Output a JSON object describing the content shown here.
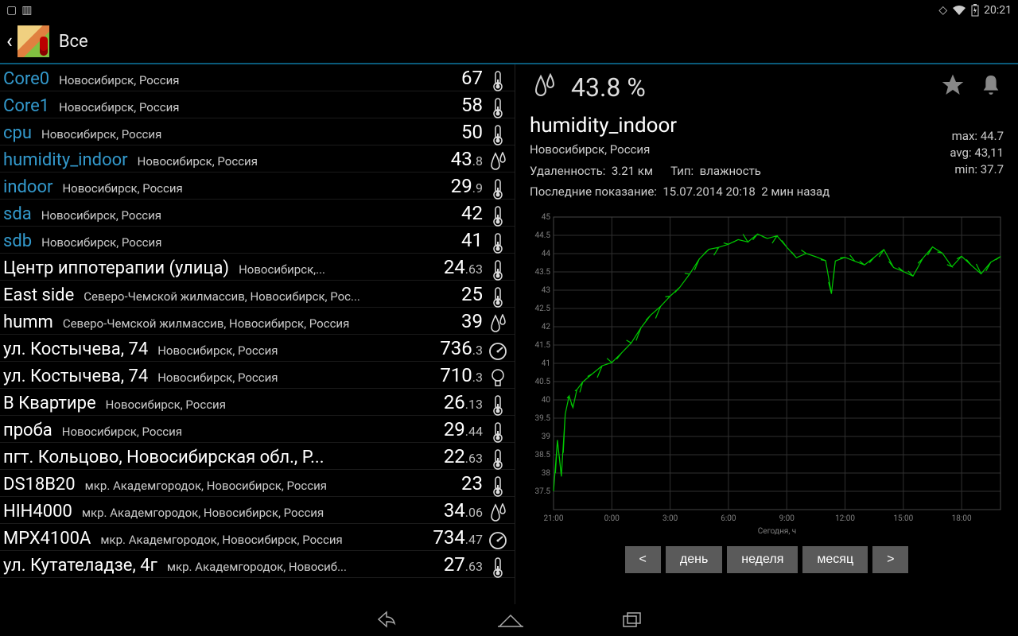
{
  "status": {
    "time": "20:21"
  },
  "header": {
    "title": "Все"
  },
  "sensors": [
    {
      "name": "Core0",
      "loc": "Новосибирск, Россия",
      "val": "67",
      "frac": "",
      "icon": "therm",
      "nameColor": "blue"
    },
    {
      "name": "Core1",
      "loc": "Новосибирск, Россия",
      "val": "58",
      "frac": "",
      "icon": "therm",
      "nameColor": "blue"
    },
    {
      "name": "cpu",
      "loc": "Новосибирск, Россия",
      "val": "50",
      "frac": "",
      "icon": "therm",
      "nameColor": "blue"
    },
    {
      "name": "humidity_indoor",
      "loc": "Новосибирск, Россия",
      "val": "43",
      "frac": ".8",
      "icon": "drop",
      "nameColor": "blue"
    },
    {
      "name": "indoor",
      "loc": "Новосибирск, Россия",
      "val": "29",
      "frac": ".9",
      "icon": "therm",
      "nameColor": "blue"
    },
    {
      "name": "sda",
      "loc": "Новосибирск, Россия",
      "val": "42",
      "frac": "",
      "icon": "therm",
      "nameColor": "blue"
    },
    {
      "name": "sdb",
      "loc": "Новосибирск, Россия",
      "val": "41",
      "frac": "",
      "icon": "therm",
      "nameColor": "blue"
    },
    {
      "name": "Центр иппотерапии (улица)",
      "loc": "Новосибирск,...",
      "val": "24",
      "frac": ".63",
      "icon": "therm",
      "nameColor": "white"
    },
    {
      "name": "East side",
      "loc": "Северо-Чемской жилмассив, Новосибирск, Рос...",
      "val": "25",
      "frac": "",
      "icon": "therm",
      "nameColor": "white"
    },
    {
      "name": "humm",
      "loc": "Северо-Чемской жилмассив, Новосибирск, Россия",
      "val": "39",
      "frac": "",
      "icon": "drop",
      "nameColor": "white"
    },
    {
      "name": "ул. Костычева, 74",
      "loc": "Новосибирск, Россия",
      "val": "736",
      "frac": ".3",
      "icon": "gauge",
      "nameColor": "white"
    },
    {
      "name": "ул. Костычева, 74",
      "loc": "Новосибирск, Россия",
      "val": "710",
      "frac": ".3",
      "icon": "bulb",
      "nameColor": "white"
    },
    {
      "name": "В Квартире",
      "loc": "Новосибирск, Россия",
      "val": "26",
      "frac": ".13",
      "icon": "therm",
      "nameColor": "white"
    },
    {
      "name": "проба",
      "loc": "Новосибирск, Россия",
      "val": "29",
      "frac": ".44",
      "icon": "therm",
      "nameColor": "white"
    },
    {
      "name": "пгт. Кольцово, Новосибирская обл., Р...",
      "loc": "",
      "val": "22",
      "frac": ".63",
      "icon": "therm",
      "nameColor": "white"
    },
    {
      "name": "DS18B20",
      "loc": "мкр. Академгородок, Новосибирск, Россия",
      "val": "23",
      "frac": "",
      "icon": "therm",
      "nameColor": "white"
    },
    {
      "name": "HIH4000",
      "loc": "мкр. Академгородок, Новосибирск, Россия",
      "val": "34",
      "frac": ".06",
      "icon": "drop",
      "nameColor": "white"
    },
    {
      "name": "MPX4100A",
      "loc": "мкр. Академгородок, Новосибирск, Россия",
      "val": "734",
      "frac": ".47",
      "icon": "gauge",
      "nameColor": "white"
    },
    {
      "name": "ул. Кутателадзе, 4г",
      "loc": "мкр. Академгородок, Новосиб...",
      "val": "27",
      "frac": ".63",
      "icon": "therm",
      "nameColor": "white"
    }
  ],
  "detail": {
    "value": "43.8 %",
    "name": "humidity_indoor",
    "location": "Новосибирск, Россия",
    "distance_label": "Удаленность:",
    "distance": "3.21 км",
    "type_label": "Тип:",
    "type": "влажность",
    "last_label": "Последние показание:",
    "last_time": "15.07.2014 20:18",
    "last_ago": "2 мин назад",
    "stats": {
      "max": "max: 44.7",
      "avg": "avg: 43,11",
      "min": "min: 37.7"
    }
  },
  "chart": {
    "type": "line",
    "ylim": [
      37,
      45
    ],
    "yticks": [
      37.5,
      38,
      38.5,
      39,
      39.5,
      40,
      40.5,
      41,
      41.5,
      42,
      42.5,
      43,
      43.5,
      44,
      44.5,
      45
    ],
    "xticks": [
      "21:00",
      "0:00",
      "3:00",
      "6:00",
      "9:00",
      "12:00",
      "15:00",
      "18:00"
    ],
    "xlabel": "Сегодня, ч",
    "line_color": "#00c800",
    "grid_color": "#303030",
    "background_color": "#000000",
    "axis_label_color": "#808080",
    "axis_label_fontsize": 10,
    "series": [
      {
        "t": 0,
        "v": 37.5
      },
      {
        "t": 0.2,
        "v": 38.8
      },
      {
        "t": 0.4,
        "v": 37.8
      },
      {
        "t": 0.6,
        "v": 39.6
      },
      {
        "t": 0.8,
        "v": 40.2
      },
      {
        "t": 1.0,
        "v": 39.9
      },
      {
        "t": 1.2,
        "v": 40.3
      },
      {
        "t": 1.5,
        "v": 40.4
      },
      {
        "t": 2.0,
        "v": 40.6
      },
      {
        "t": 2.5,
        "v": 40.9
      },
      {
        "t": 3.0,
        "v": 41.1
      },
      {
        "t": 3.5,
        "v": 41.4
      },
      {
        "t": 4.0,
        "v": 41.6
      },
      {
        "t": 4.5,
        "v": 41.9
      },
      {
        "t": 5.0,
        "v": 42.2
      },
      {
        "t": 5.5,
        "v": 42.5
      },
      {
        "t": 6.0,
        "v": 42.9
      },
      {
        "t": 6.5,
        "v": 43.2
      },
      {
        "t": 7.0,
        "v": 43.5
      },
      {
        "t": 7.5,
        "v": 43.8
      },
      {
        "t": 8.0,
        "v": 44.0
      },
      {
        "t": 8.5,
        "v": 44.1
      },
      {
        "t": 9.0,
        "v": 44.3
      },
      {
        "t": 9.5,
        "v": 44.5
      },
      {
        "t": 10.0,
        "v": 44.4
      },
      {
        "t": 10.5,
        "v": 44.5
      },
      {
        "t": 11.0,
        "v": 44.3
      },
      {
        "t": 11.5,
        "v": 44.4
      },
      {
        "t": 12.0,
        "v": 44.2
      },
      {
        "t": 12.5,
        "v": 44.0
      },
      {
        "t": 13.0,
        "v": 44.1
      },
      {
        "t": 13.5,
        "v": 43.9
      },
      {
        "t": 14.0,
        "v": 43.7
      },
      {
        "t": 14.3,
        "v": 42.8
      },
      {
        "t": 14.5,
        "v": 43.8
      },
      {
        "t": 15.0,
        "v": 44.0
      },
      {
        "t": 15.5,
        "v": 43.9
      },
      {
        "t": 16.0,
        "v": 43.7
      },
      {
        "t": 16.5,
        "v": 43.8
      },
      {
        "t": 17.0,
        "v": 44.0
      },
      {
        "t": 17.5,
        "v": 43.6
      },
      {
        "t": 18.0,
        "v": 43.6
      },
      {
        "t": 18.5,
        "v": 43.5
      },
      {
        "t": 19.0,
        "v": 43.9
      },
      {
        "t": 19.5,
        "v": 44.1
      },
      {
        "t": 20.0,
        "v": 43.9
      },
      {
        "t": 20.5,
        "v": 43.6
      },
      {
        "t": 21.0,
        "v": 44.0
      },
      {
        "t": 21.5,
        "v": 43.8
      },
      {
        "t": 22.0,
        "v": 43.5
      },
      {
        "t": 22.5,
        "v": 43.7
      },
      {
        "t": 23.0,
        "v": 43.8
      }
    ]
  },
  "buttons": {
    "prev": "<",
    "day": "день",
    "week": "неделя",
    "month": "месяц",
    "next": ">"
  }
}
